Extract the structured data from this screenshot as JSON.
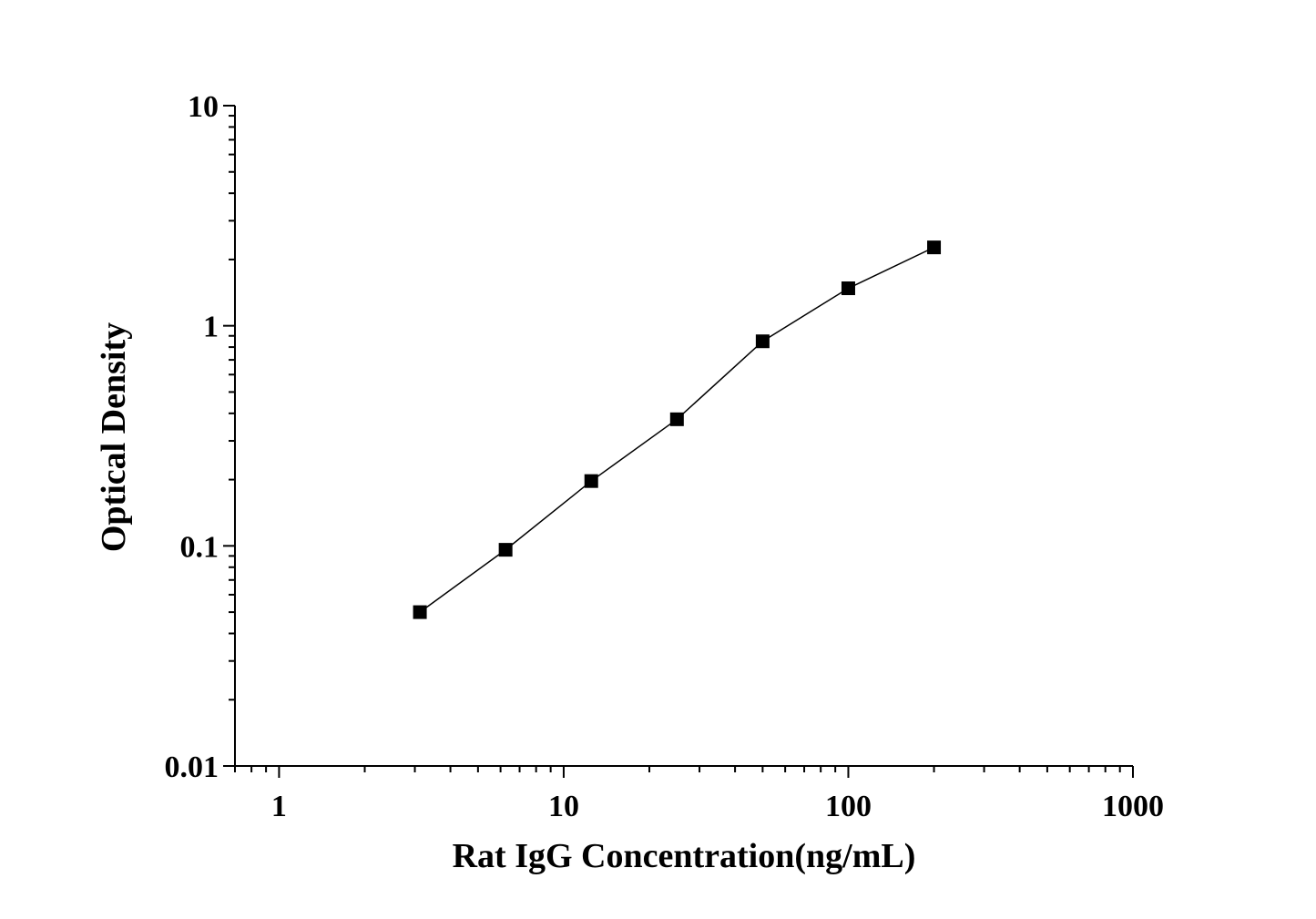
{
  "chart_data": {
    "type": "line",
    "x_label": "Rat IgG Concentration(ng/mL)",
    "y_label": "Optical Density",
    "x": [
      3.125,
      6.25,
      12.5,
      25,
      50,
      100,
      200
    ],
    "series": [
      {
        "color": "#000000",
        "values": [
          0.05,
          0.096,
          0.197,
          0.376,
          0.85,
          1.48,
          2.27
        ]
      }
    ],
    "xlim": [
      0.7,
      1000
    ],
    "ylim": [
      0.01,
      10
    ],
    "xticks": [
      1,
      10,
      100,
      1000
    ],
    "yticks": [
      0.01,
      0.1,
      1,
      10
    ],
    "xscale": "log",
    "yscale": "log",
    "marker": "square",
    "grid": false
  }
}
